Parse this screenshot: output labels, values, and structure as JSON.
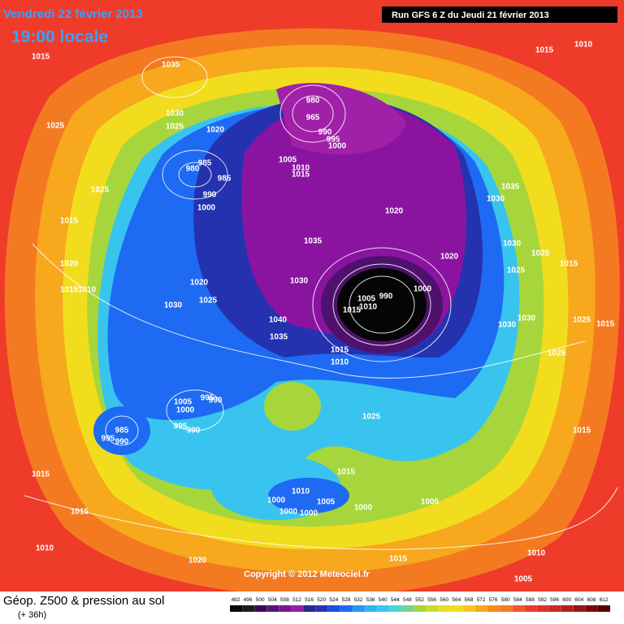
{
  "header": {
    "date": "Vendredi 22 février 2013",
    "time": "19:00 locale",
    "run": "Run GFS 6 Z du Jeudi 21 février 2013"
  },
  "copyright": "Copyright © 2012 Meteociel.fr",
  "footer": {
    "title": "Géop. Z500 & pression au sol",
    "lead": "(+ 36h)"
  },
  "scale": [
    492,
    496,
    500,
    504,
    508,
    512,
    516,
    520,
    524,
    528,
    532,
    536,
    540,
    544,
    548,
    552,
    556,
    560,
    564,
    568,
    572,
    576,
    580,
    584,
    588,
    592,
    596,
    600,
    604,
    608,
    612
  ],
  "isobars": [
    1015,
    1035,
    1015,
    1010,
    1030,
    1025,
    1025,
    1020,
    980,
    965,
    990,
    995,
    1000,
    980,
    985,
    985,
    990,
    1000,
    1005,
    1010,
    1015,
    1025,
    1015,
    1020,
    1030,
    1035,
    1020,
    1030,
    1025,
    1025,
    1015,
    1035,
    1030,
    1020,
    1015,
    1010,
    1020,
    1025,
    1030,
    1000,
    990,
    1005,
    1010,
    1015,
    1040,
    1035,
    1015,
    1010,
    1030,
    1030,
    1025,
    1015,
    1025,
    1005,
    995,
    990,
    1000,
    995,
    990,
    985,
    995,
    990,
    1025,
    1015,
    1015,
    1015,
    1010,
    1005,
    1000,
    1000,
    1000,
    1000,
    1005,
    1015,
    1010,
    1020,
    1015,
    1010,
    1005
  ]
}
